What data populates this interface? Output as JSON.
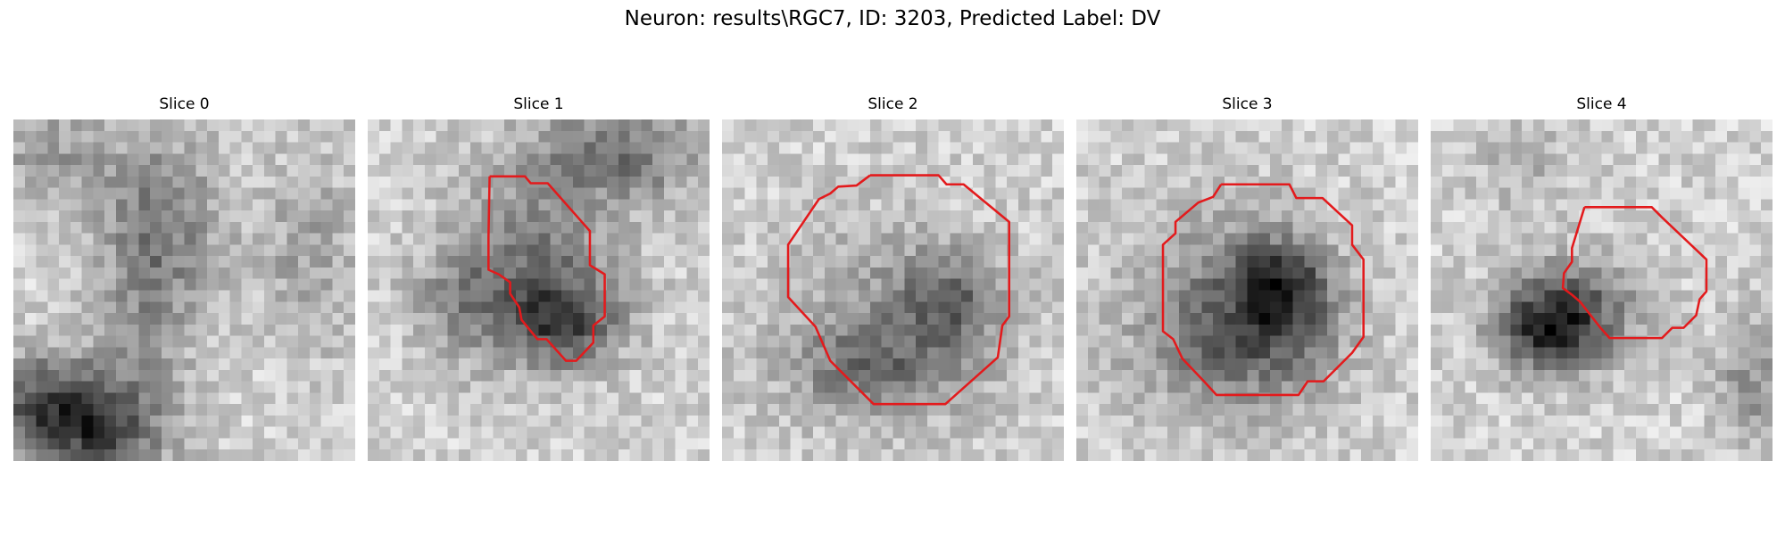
{
  "figure": {
    "title": "Neuron: results\\RGC7, ID: 3203, Predicted Label: DV",
    "contour_color": "#e31a1c",
    "colormap": "grayscale",
    "grid_size": 30
  },
  "panels": [
    {
      "title": "Slice 0",
      "has_contour": false
    },
    {
      "title": "Slice 1",
      "has_contour": true
    },
    {
      "title": "Slice 2",
      "has_contour": true
    },
    {
      "title": "Slice 3",
      "has_contour": true
    },
    {
      "title": "Slice 4",
      "has_contour": true
    }
  ]
}
